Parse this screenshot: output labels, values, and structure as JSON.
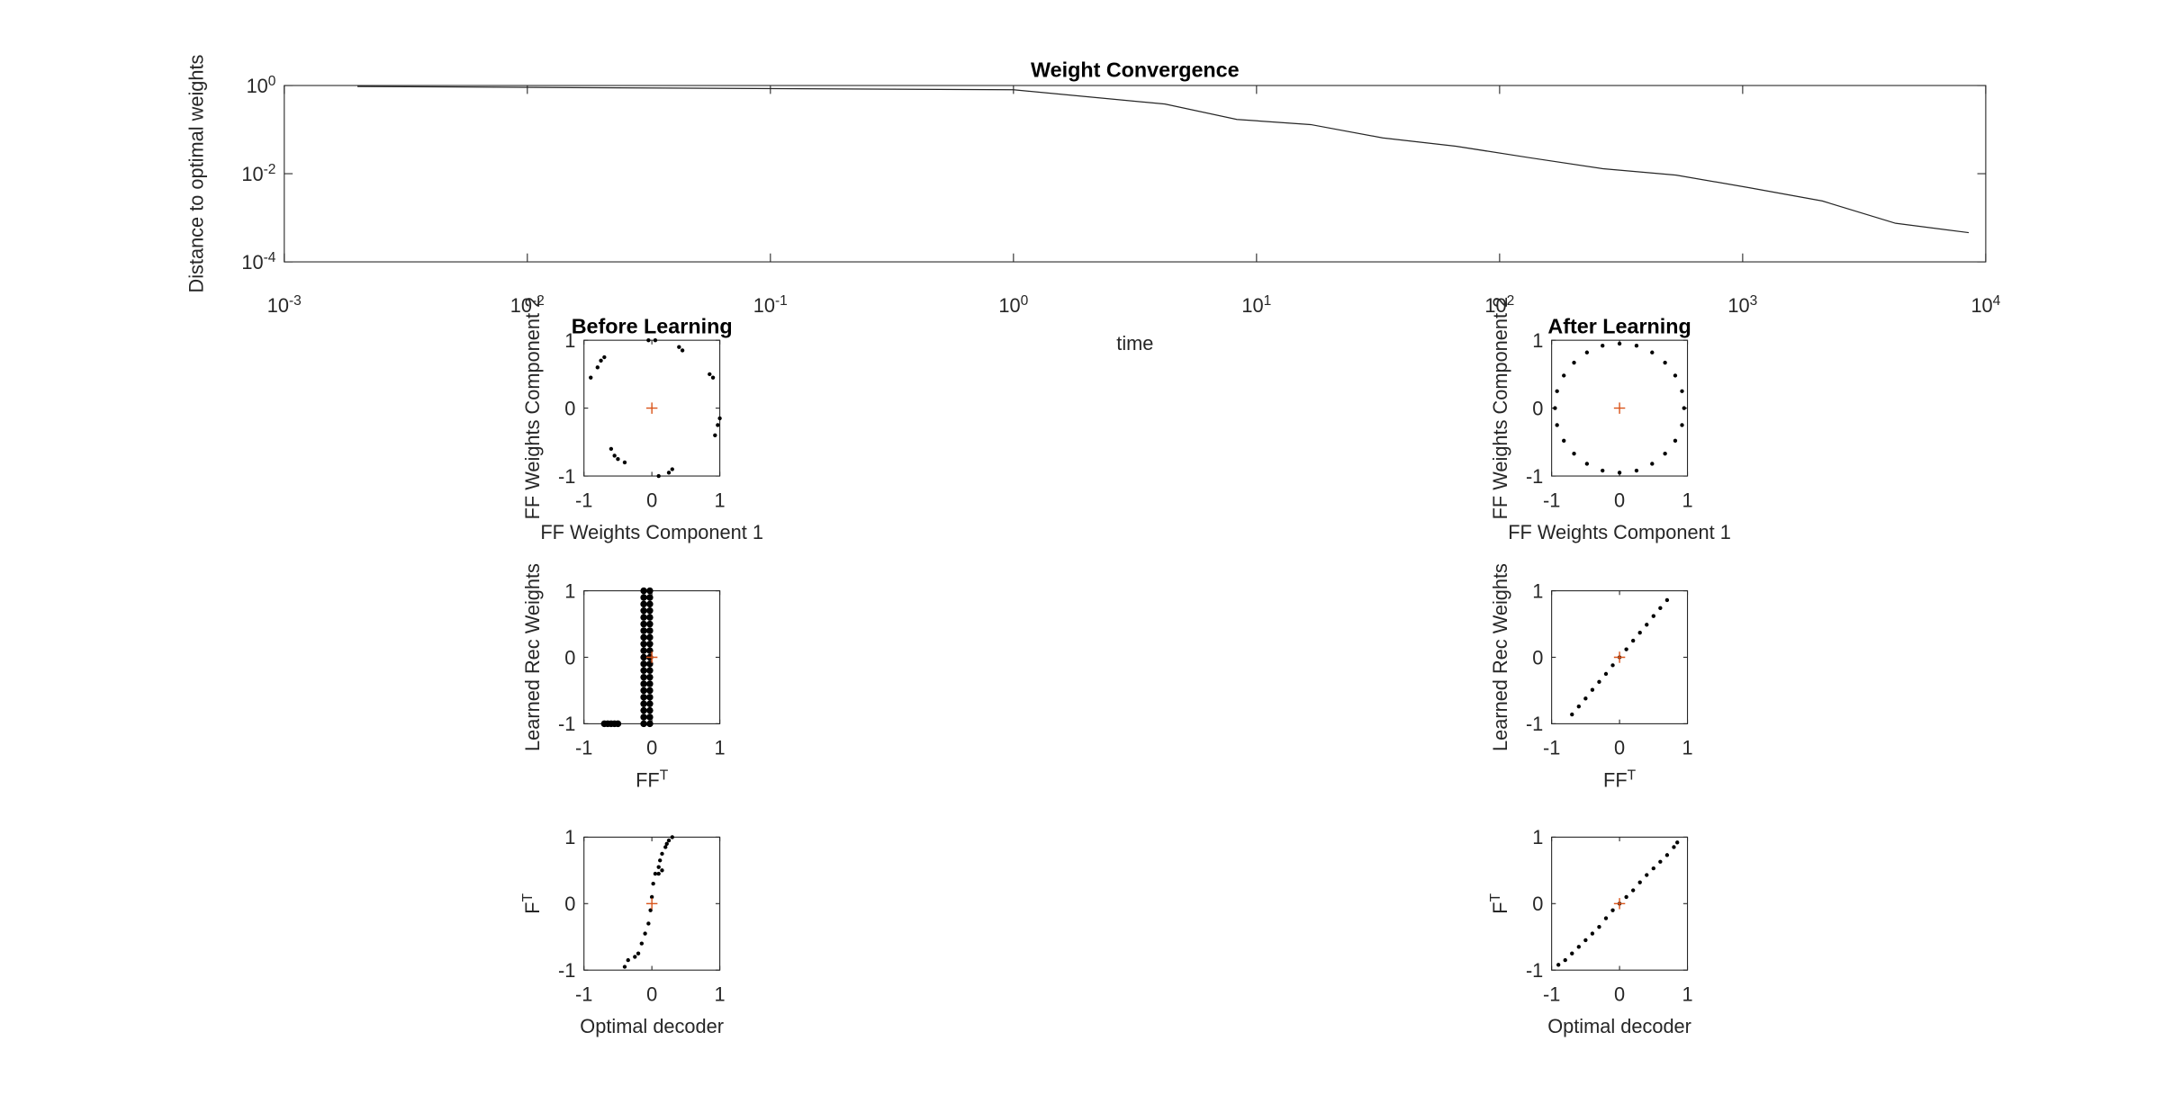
{
  "chart_data": [
    {
      "type": "line",
      "title": "Weight Convergence",
      "x_label": "time",
      "y_label": "Distance to optimal weights",
      "xscale": "log",
      "yscale": "log",
      "xlim": [
        0.001,
        10000
      ],
      "xticks": [
        {
          "value": 0.001,
          "label": "10^-3"
        },
        {
          "value": 0.01,
          "label": "10^-2"
        },
        {
          "value": 0.1,
          "label": "10^-1"
        },
        {
          "value": 1,
          "label": "10^0"
        },
        {
          "value": 10,
          "label": "10^1"
        },
        {
          "value": 100,
          "label": "10^2"
        },
        {
          "value": 1000,
          "label": "10^3"
        },
        {
          "value": 10000,
          "label": "10^4"
        }
      ],
      "ylim": [
        0.0001,
        1
      ],
      "yticks": [
        {
          "value": 0.0001,
          "label": "10^-4"
        },
        {
          "value": 0.01,
          "label": "10^-2"
        },
        {
          "value": 1,
          "label": "10^0"
        }
      ],
      "series": [
        {
          "color": "#262626",
          "x": [
            0.002,
            1,
            4.2,
            8.3,
            16.7,
            33,
            66,
            133,
            266,
            532,
            1064,
            2128,
            4256,
            8512
          ],
          "values": [
            0.95,
            0.8,
            0.38,
            0.17,
            0.13,
            0.065,
            0.042,
            0.023,
            0.013,
            0.0093,
            0.0048,
            0.0024,
            0.00075,
            0.00046
          ]
        }
      ]
    },
    {
      "type": "scatter",
      "title": "Before Learning",
      "x_label": "FF Weights Component 1",
      "y_label": "FF Weights Component 2",
      "xlim": [
        -1,
        1
      ],
      "xticks": [
        -1,
        0,
        1
      ],
      "ylim": [
        -1,
        1
      ],
      "yticks": [
        -1,
        0,
        1
      ],
      "series": [
        {
          "color": "#000000",
          "marker": "dot",
          "x": [
            -0.9,
            -0.8,
            -0.75,
            -0.7,
            -0.05,
            0.05,
            0.4,
            0.45,
            0.85,
            0.9,
            1,
            0.97,
            0.93,
            0.3,
            0.25,
            0.1,
            -0.55,
            -0.5,
            -0.4,
            -0.6
          ],
          "values": [
            0.45,
            0.6,
            0.7,
            0.75,
            1,
            1,
            0.9,
            0.85,
            0.5,
            0.45,
            -0.15,
            -0.25,
            -0.4,
            -0.9,
            -0.95,
            -1,
            -0.7,
            -0.75,
            -0.8,
            -0.6
          ]
        },
        {
          "color": "#d95319",
          "marker": "plus",
          "x": [
            0
          ],
          "values": [
            0
          ]
        }
      ]
    },
    {
      "type": "scatter",
      "title": "After Learning",
      "x_label": "FF Weights Component 1",
      "y_label": "FF Weights Component 2",
      "xlim": [
        -1,
        1
      ],
      "xticks": [
        -1,
        0,
        1
      ],
      "ylim": [
        -1,
        1
      ],
      "yticks": [
        -1,
        0,
        1
      ],
      "series": [
        {
          "color": "#000000",
          "marker": "dot",
          "x": [
            0.95,
            0.92,
            0.82,
            0.67,
            0.48,
            0.25,
            0,
            -0.25,
            -0.48,
            -0.67,
            -0.82,
            -0.92,
            -0.95,
            -0.92,
            -0.82,
            -0.67,
            -0.48,
            -0.25,
            0,
            0.25,
            0.48,
            0.67,
            0.82,
            0.92
          ],
          "values": [
            0,
            0.25,
            0.48,
            0.67,
            0.82,
            0.92,
            0.95,
            0.92,
            0.82,
            0.67,
            0.48,
            0.25,
            0,
            -0.25,
            -0.48,
            -0.67,
            -0.82,
            -0.92,
            -0.95,
            -0.92,
            -0.82,
            -0.67,
            -0.48,
            -0.25
          ]
        },
        {
          "color": "#d95319",
          "marker": "plus",
          "x": [
            0
          ],
          "values": [
            0
          ]
        }
      ]
    },
    {
      "type": "scatter",
      "x_label": "FF^T",
      "y_label": "Learned Rec Weights",
      "xlim": [
        -1,
        1
      ],
      "xticks": [
        -1,
        0,
        1
      ],
      "ylim": [
        -1,
        1
      ],
      "yticks": [
        -1,
        0,
        1
      ],
      "series": [
        {
          "color": "#000000",
          "marker": "dot",
          "x": [
            -0.12,
            -0.03,
            -0.12,
            -0.03,
            -0.12,
            -0.03,
            -0.12,
            -0.03,
            -0.12,
            -0.03,
            -0.12,
            -0.03,
            -0.12,
            -0.03,
            -0.12,
            -0.03,
            -0.12,
            -0.03,
            -0.12,
            -0.03,
            -0.12,
            -0.03,
            -0.12,
            -0.03,
            -0.12,
            -0.03,
            -0.12,
            -0.03,
            -0.12,
            -0.03,
            -0.12,
            -0.03,
            -0.12,
            -0.03,
            -0.12,
            -0.03,
            -0.12,
            -0.03,
            -0.12,
            -0.03,
            -0.12,
            -0.03,
            -0.7,
            -0.65,
            -0.6,
            -0.55,
            -0.5
          ],
          "values": [
            -1,
            -1,
            -0.9,
            -0.9,
            -0.8,
            -0.8,
            -0.7,
            -0.7,
            -0.6,
            -0.6,
            -0.5,
            -0.5,
            -0.4,
            -0.4,
            -0.3,
            -0.3,
            -0.2,
            -0.2,
            -0.1,
            -0.1,
            0,
            0,
            0.1,
            0.1,
            0.2,
            0.2,
            0.3,
            0.3,
            0.4,
            0.4,
            0.5,
            0.5,
            0.6,
            0.6,
            0.7,
            0.7,
            0.8,
            0.8,
            0.9,
            0.9,
            1,
            1,
            -1,
            -1,
            -1,
            -1,
            -1
          ]
        },
        {
          "color": "#d95319",
          "marker": "plus",
          "x": [
            0
          ],
          "values": [
            0
          ]
        }
      ]
    },
    {
      "type": "scatter",
      "x_label": "FF^T",
      "y_label": "Learned Rec Weights",
      "xlim": [
        -1,
        1
      ],
      "xticks": [
        -1,
        0,
        1
      ],
      "ylim": [
        -1,
        1
      ],
      "yticks": [
        -1,
        0,
        1
      ],
      "series": [
        {
          "color": "#000000",
          "marker": "dot",
          "x": [
            -0.7,
            -0.6,
            -0.5,
            -0.4,
            -0.3,
            -0.2,
            -0.1,
            0,
            0.1,
            0.2,
            0.3,
            0.4,
            0.5,
            0.6,
            0.7
          ],
          "values": [
            -0.86,
            -0.74,
            -0.62,
            -0.49,
            -0.37,
            -0.25,
            -0.12,
            0,
            0.12,
            0.25,
            0.37,
            0.49,
            0.62,
            0.74,
            0.86
          ]
        },
        {
          "color": "#d95319",
          "marker": "plus",
          "x": [
            0
          ],
          "values": [
            0
          ]
        }
      ]
    },
    {
      "type": "scatter",
      "x_label": "Optimal decoder",
      "y_label": "F^T",
      "xlim": [
        -1,
        1
      ],
      "xticks": [
        -1,
        0,
        1
      ],
      "ylim": [
        -1,
        1
      ],
      "yticks": [
        -1,
        0,
        1
      ],
      "series": [
        {
          "color": "#000000",
          "marker": "dot",
          "x": [
            -0.4,
            -0.35,
            -0.25,
            -0.2,
            -0.15,
            -0.1,
            -0.05,
            -0.02,
            0,
            0.02,
            0.05,
            0.1,
            0.12,
            0.15,
            0.2,
            0.25,
            0.3,
            0.22,
            0.1,
            0.15
          ],
          "values": [
            -0.95,
            -0.85,
            -0.8,
            -0.75,
            -0.6,
            -0.45,
            -0.3,
            -0.1,
            0.1,
            0.3,
            0.45,
            0.55,
            0.65,
            0.75,
            0.85,
            0.95,
            1,
            0.9,
            0.45,
            0.5
          ]
        },
        {
          "color": "#d95319",
          "marker": "plus",
          "x": [
            0
          ],
          "values": [
            0
          ]
        }
      ]
    },
    {
      "type": "scatter",
      "x_label": "Optimal decoder",
      "y_label": "F^T",
      "xlim": [
        -1,
        1
      ],
      "xticks": [
        -1,
        0,
        1
      ],
      "ylim": [
        -1,
        1
      ],
      "yticks": [
        -1,
        0,
        1
      ],
      "series": [
        {
          "color": "#000000",
          "marker": "dot",
          "x": [
            -0.9,
            -0.8,
            -0.7,
            -0.6,
            -0.5,
            -0.4,
            -0.3,
            -0.2,
            -0.1,
            0,
            0.1,
            0.2,
            0.3,
            0.4,
            0.5,
            0.6,
            0.7,
            0.8,
            0.85
          ],
          "values": [
            -0.92,
            -0.85,
            -0.75,
            -0.65,
            -0.55,
            -0.45,
            -0.35,
            -0.22,
            -0.1,
            0,
            0.1,
            0.2,
            0.32,
            0.43,
            0.53,
            0.63,
            0.73,
            0.85,
            0.92
          ]
        },
        {
          "color": "#d95319",
          "marker": "plus",
          "x": [
            0
          ],
          "values": [
            0
          ]
        }
      ]
    }
  ]
}
